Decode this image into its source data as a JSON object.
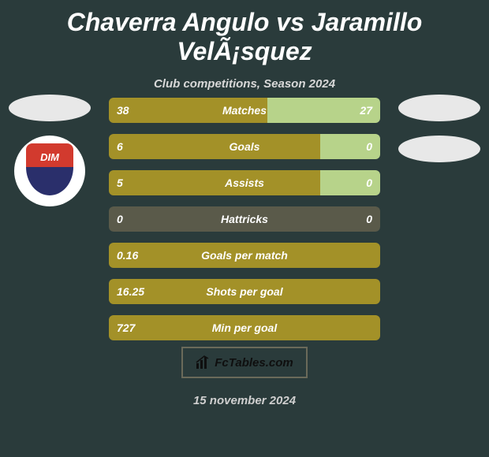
{
  "title": "Chaverra Angulo vs Jaramillo VelÃ¡squez",
  "subtitle": "Club competitions, Season 2024",
  "colors": {
    "bg": "#2a3b3b",
    "barLeft": "#a39128",
    "barRight": "#b7d38a",
    "trackEmpty": "#5a5a4a",
    "text": "#ffffff",
    "ellipse": "#e8e8e8",
    "badgeTop": "#d23a2e",
    "badgeBottom": "#2a2f6b",
    "logoBorder": "#6a6a5a"
  },
  "rowWidth": 344,
  "rows": [
    {
      "label": "Matches",
      "left": "38",
      "right": "27",
      "leftFrac": 0.584,
      "rightFrac": 0.416
    },
    {
      "label": "Goals",
      "left": "6",
      "right": "0",
      "leftFrac": 0.78,
      "rightFrac": 0.22
    },
    {
      "label": "Assists",
      "left": "5",
      "right": "0",
      "leftFrac": 0.78,
      "rightFrac": 0.22
    },
    {
      "label": "Hattricks",
      "left": "0",
      "right": "0",
      "leftFrac": 0.5,
      "rightFrac": 0.5,
      "empty": true
    },
    {
      "label": "Goals per match",
      "left": "0.16",
      "right": "",
      "leftFrac": 1.0,
      "rightFrac": 0.0
    },
    {
      "label": "Shots per goal",
      "left": "16.25",
      "right": "",
      "leftFrac": 1.0,
      "rightFrac": 0.0
    },
    {
      "label": "Min per goal",
      "left": "727",
      "right": "",
      "leftFrac": 1.0,
      "rightFrac": 0.0
    }
  ],
  "badgeText": "DIM",
  "footer": {
    "brand": "FcTables.com",
    "date": "15 november 2024"
  }
}
